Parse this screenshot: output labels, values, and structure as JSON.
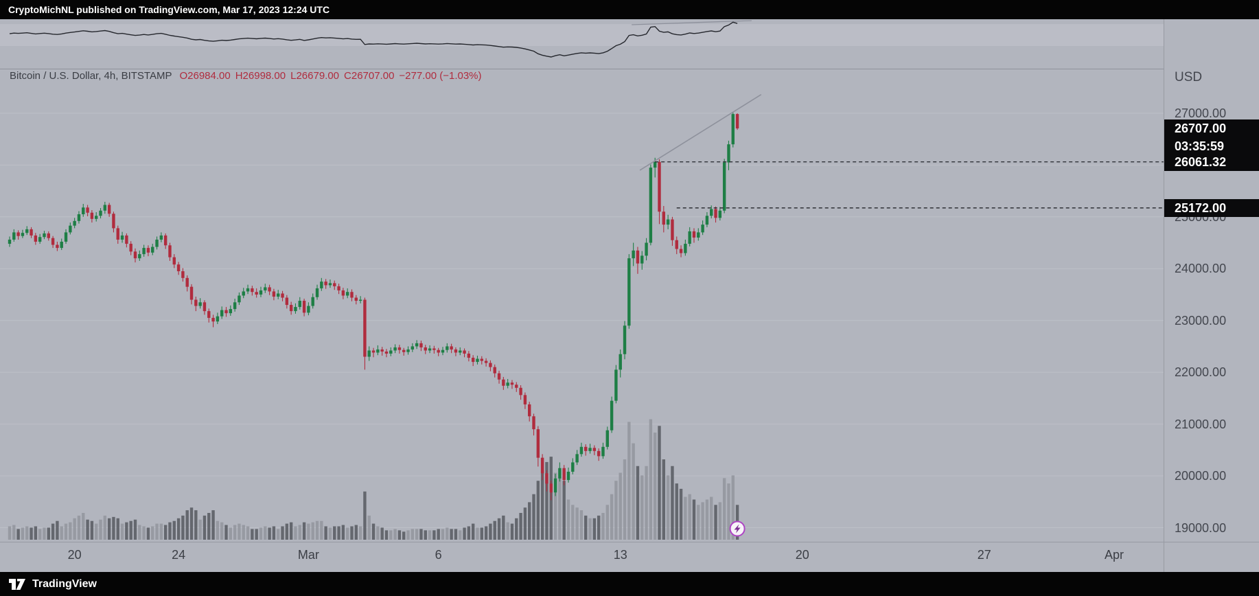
{
  "attribution": {
    "text": "CryptoMichNL published on TradingView.com, Mar 17, 2023 12:24 UTC"
  },
  "legend": {
    "series": "Bitcoin / U.S. Dollar, 4h, BITSTAMP",
    "open": "O26984.00",
    "high": "H26998.00",
    "low": "L26679.00",
    "close": "C26707.00",
    "change": "−277.00 (−1.03%)"
  },
  "price_axis": {
    "currency": "USD",
    "scale_levels": [
      27000,
      26000,
      25000,
      24000,
      23000,
      22000,
      21000,
      20000,
      19000
    ],
    "labels": [
      "27000.00",
      "26000.00",
      "25000.00",
      "24000.00",
      "23000.00",
      "22000.00",
      "21000.00",
      "20000.00",
      "19000.00"
    ],
    "current_price": "26707.00",
    "countdown": "03:35:59"
  },
  "time_axis": {
    "labels": [
      {
        "text": "20",
        "index": 15
      },
      {
        "text": "24",
        "index": 39
      },
      {
        "text": "Mar",
        "index": 69
      },
      {
        "text": "6",
        "index": 99
      },
      {
        "text": "13",
        "index": 141
      },
      {
        "text": "20",
        "index": 183
      },
      {
        "text": "27",
        "index": 225
      },
      {
        "text": "Apr",
        "index": 255
      }
    ]
  },
  "branding": {
    "name": "TradingView"
  },
  "colors": {
    "background": "#b2b5be",
    "up": "#1e7e45",
    "down": "#b02c3e",
    "volume_up": "#94979e",
    "volume_down": "#5b5e65",
    "label_box": "#0a0a0c",
    "legend_values": "#b02c3e"
  },
  "chart_data": {
    "type": "candlestick",
    "symbol": "Bitcoin / U.S. Dollar",
    "exchange": "BITSTAMP",
    "interval": "4h",
    "visible_price_range": [
      19000,
      27360
    ],
    "current": {
      "open": 26984.0,
      "high": 26998.0,
      "low": 26679.0,
      "close": 26707.0,
      "change": -277.0,
      "change_percent": -1.03
    },
    "levels": [
      {
        "price": 26061.32,
        "label": "26061.32",
        "start_index": 149
      },
      {
        "price": 25172.0,
        "label": "25172.00",
        "start_index": 154
      }
    ],
    "trendlines": [
      {
        "pane": "main",
        "i1": 145.5,
        "p1": 25900,
        "i2": 173.5,
        "p2": 27360
      },
      {
        "pane": "overview",
        "i1": 143.6,
        "p1": 26450,
        "i2": 171.3,
        "p2": 27320
      }
    ],
    "marker": {
      "type": "lightning-idea",
      "index": 168
    },
    "candle_format": [
      "open",
      "high",
      "low",
      "close",
      "volume_relative"
    ],
    "candles": [
      [
        24480,
        24620,
        24420,
        24560,
        10
      ],
      [
        24560,
        24760,
        24520,
        24700,
        11
      ],
      [
        24700,
        24740,
        24560,
        24630,
        8
      ],
      [
        24630,
        24750,
        24590,
        24690,
        9
      ],
      [
        24690,
        24820,
        24650,
        24760,
        10
      ],
      [
        24760,
        24800,
        24590,
        24640,
        9
      ],
      [
        24640,
        24690,
        24460,
        24520,
        10
      ],
      [
        24520,
        24670,
        24480,
        24610,
        8
      ],
      [
        24610,
        24730,
        24570,
        24680,
        9
      ],
      [
        24680,
        24720,
        24540,
        24590,
        9
      ],
      [
        24590,
        24630,
        24400,
        24460,
        12
      ],
      [
        24460,
        24520,
        24340,
        24400,
        14
      ],
      [
        24400,
        24580,
        24360,
        24520,
        10
      ],
      [
        24520,
        24760,
        24480,
        24700,
        12
      ],
      [
        24700,
        24890,
        24660,
        24830,
        13
      ],
      [
        24830,
        24980,
        24780,
        24920,
        16
      ],
      [
        24920,
        25110,
        24870,
        25050,
        18
      ],
      [
        25050,
        25250,
        25000,
        25180,
        20
      ],
      [
        25180,
        25230,
        25010,
        25080,
        15
      ],
      [
        25080,
        25130,
        24890,
        24960,
        14
      ],
      [
        24960,
        25090,
        24910,
        25020,
        12
      ],
      [
        25020,
        25170,
        24970,
        25120,
        15
      ],
      [
        25120,
        25290,
        25060,
        25230,
        18
      ],
      [
        25230,
        25270,
        25000,
        25060,
        16
      ],
      [
        25060,
        25100,
        24700,
        24780,
        17
      ],
      [
        24780,
        24830,
        24480,
        24560,
        16
      ],
      [
        24560,
        24710,
        24500,
        24640,
        12
      ],
      [
        24640,
        24680,
        24410,
        24480,
        13
      ],
      [
        24480,
        24530,
        24260,
        24330,
        14
      ],
      [
        24330,
        24390,
        24120,
        24200,
        15
      ],
      [
        24200,
        24350,
        24150,
        24280,
        11
      ],
      [
        24280,
        24460,
        24230,
        24400,
        10
      ],
      [
        24400,
        24450,
        24240,
        24310,
        9
      ],
      [
        24310,
        24480,
        24260,
        24420,
        10
      ],
      [
        24420,
        24620,
        24370,
        24560,
        12
      ],
      [
        24560,
        24700,
        24510,
        24640,
        12
      ],
      [
        24640,
        24680,
        24380,
        24450,
        11
      ],
      [
        24450,
        24500,
        24150,
        24220,
        13
      ],
      [
        24220,
        24280,
        24010,
        24080,
        14
      ],
      [
        24080,
        24130,
        23880,
        23950,
        16
      ],
      [
        23950,
        24010,
        23750,
        23820,
        18
      ],
      [
        23820,
        23870,
        23560,
        23650,
        22
      ],
      [
        23650,
        23700,
        23310,
        23400,
        24
      ],
      [
        23400,
        23460,
        23180,
        23280,
        22
      ],
      [
        23280,
        23430,
        23230,
        23350,
        15
      ],
      [
        23350,
        23390,
        23110,
        23180,
        18
      ],
      [
        23180,
        23230,
        22960,
        23050,
        20
      ],
      [
        23050,
        23110,
        22870,
        22980,
        22
      ],
      [
        22980,
        23150,
        22930,
        23080,
        14
      ],
      [
        23080,
        23270,
        23030,
        23200,
        13
      ],
      [
        23200,
        23260,
        23070,
        23140,
        11
      ],
      [
        23140,
        23290,
        23090,
        23220,
        9
      ],
      [
        23220,
        23420,
        23170,
        23350,
        11
      ],
      [
        23350,
        23540,
        23300,
        23480,
        12
      ],
      [
        23480,
        23630,
        23430,
        23560,
        11
      ],
      [
        23560,
        23690,
        23510,
        23620,
        10
      ],
      [
        23620,
        23670,
        23480,
        23550,
        8
      ],
      [
        23550,
        23620,
        23440,
        23500,
        8
      ],
      [
        23500,
        23650,
        23450,
        23580,
        9
      ],
      [
        23580,
        23710,
        23530,
        23640,
        10
      ],
      [
        23640,
        23690,
        23490,
        23560,
        9
      ],
      [
        23560,
        23610,
        23390,
        23460,
        10
      ],
      [
        23460,
        23590,
        23410,
        23520,
        8
      ],
      [
        23520,
        23570,
        23370,
        23440,
        10
      ],
      [
        23440,
        23490,
        23230,
        23300,
        12
      ],
      [
        23300,
        23360,
        23110,
        23180,
        13
      ],
      [
        23180,
        23330,
        23130,
        23260,
        10
      ],
      [
        23260,
        23450,
        23210,
        23380,
        11
      ],
      [
        23380,
        23420,
        23080,
        23150,
        13
      ],
      [
        23150,
        23350,
        23100,
        23280,
        12
      ],
      [
        23280,
        23520,
        23230,
        23450,
        13
      ],
      [
        23450,
        23690,
        23400,
        23620,
        14
      ],
      [
        23620,
        23820,
        23570,
        23750,
        14
      ],
      [
        23750,
        23800,
        23610,
        23680,
        10
      ],
      [
        23680,
        23790,
        23630,
        23720,
        9
      ],
      [
        23720,
        23770,
        23590,
        23660,
        10
      ],
      [
        23660,
        23710,
        23510,
        23580,
        10
      ],
      [
        23580,
        23630,
        23410,
        23480,
        11
      ],
      [
        23480,
        23620,
        23430,
        23550,
        9
      ],
      [
        23550,
        23600,
        23370,
        23440,
        10
      ],
      [
        23440,
        23490,
        23310,
        23380,
        11
      ],
      [
        23380,
        23470,
        23330,
        23400,
        10
      ],
      [
        23400,
        23440,
        22050,
        22300,
        36
      ],
      [
        22300,
        22500,
        22220,
        22420,
        18
      ],
      [
        22420,
        22470,
        22290,
        22380,
        12
      ],
      [
        22380,
        22520,
        22330,
        22440,
        10
      ],
      [
        22440,
        22490,
        22320,
        22400,
        9
      ],
      [
        22400,
        22450,
        22290,
        22360,
        7
      ],
      [
        22360,
        22480,
        22310,
        22420,
        7
      ],
      [
        22420,
        22540,
        22370,
        22480,
        8
      ],
      [
        22480,
        22530,
        22360,
        22430,
        7
      ],
      [
        22430,
        22470,
        22320,
        22390,
        6
      ],
      [
        22390,
        22500,
        22340,
        22440,
        7
      ],
      [
        22440,
        22560,
        22390,
        22500,
        8
      ],
      [
        22500,
        22620,
        22450,
        22560,
        8
      ],
      [
        22560,
        22610,
        22410,
        22480,
        8
      ],
      [
        22480,
        22530,
        22350,
        22420,
        7
      ],
      [
        22420,
        22520,
        22370,
        22460,
        7
      ],
      [
        22460,
        22510,
        22360,
        22430,
        7
      ],
      [
        22430,
        22470,
        22310,
        22380,
        8
      ],
      [
        22380,
        22490,
        22330,
        22430,
        8
      ],
      [
        22430,
        22560,
        22380,
        22500,
        9
      ],
      [
        22500,
        22550,
        22370,
        22440,
        8
      ],
      [
        22440,
        22480,
        22310,
        22380,
        8
      ],
      [
        22380,
        22480,
        22330,
        22420,
        7
      ],
      [
        22420,
        22460,
        22290,
        22360,
        9
      ],
      [
        22360,
        22410,
        22210,
        22280,
        10
      ],
      [
        22280,
        22330,
        22120,
        22200,
        12
      ],
      [
        22200,
        22320,
        22150,
        22260,
        9
      ],
      [
        22260,
        22310,
        22150,
        22220,
        9
      ],
      [
        22220,
        22270,
        22110,
        22180,
        10
      ],
      [
        22180,
        22230,
        22020,
        22100,
        12
      ],
      [
        22100,
        22150,
        21900,
        21980,
        14
      ],
      [
        21980,
        22030,
        21780,
        21860,
        16
      ],
      [
        21860,
        21910,
        21660,
        21740,
        18
      ],
      [
        21740,
        21870,
        21690,
        21800,
        13
      ],
      [
        21800,
        21850,
        21680,
        21760,
        12
      ],
      [
        21760,
        21810,
        21620,
        21700,
        16
      ],
      [
        21700,
        21750,
        21470,
        21560,
        20
      ],
      [
        21560,
        21610,
        21290,
        21380,
        24
      ],
      [
        21380,
        21430,
        21050,
        21150,
        28
      ],
      [
        21150,
        21200,
        20780,
        20900,
        34
      ],
      [
        20900,
        20960,
        20180,
        20350,
        44
      ],
      [
        20350,
        20420,
        19920,
        20050,
        52
      ],
      [
        20050,
        20110,
        19700,
        19850,
        58
      ],
      [
        19850,
        19910,
        19530,
        19680,
        62
      ],
      [
        19680,
        20040,
        19610,
        19950,
        50
      ],
      [
        19950,
        20260,
        19890,
        20150,
        46
      ],
      [
        20150,
        20210,
        19820,
        19920,
        44
      ],
      [
        19920,
        20160,
        19870,
        20080,
        30
      ],
      [
        20080,
        20340,
        20030,
        20260,
        26
      ],
      [
        20260,
        20500,
        20210,
        20420,
        24
      ],
      [
        20420,
        20640,
        20370,
        20560,
        22
      ],
      [
        20560,
        20610,
        20390,
        20480,
        18
      ],
      [
        20480,
        20620,
        20430,
        20540,
        16
      ],
      [
        20540,
        20590,
        20400,
        20480,
        16
      ],
      [
        20480,
        20530,
        20290,
        20380,
        18
      ],
      [
        20380,
        20640,
        20330,
        20560,
        20
      ],
      [
        20560,
        20950,
        20510,
        20880,
        26
      ],
      [
        20880,
        21530,
        20830,
        21450,
        34
      ],
      [
        21450,
        22140,
        21400,
        22050,
        44
      ],
      [
        22050,
        22440,
        21900,
        22350,
        50
      ],
      [
        22350,
        22990,
        22250,
        22900,
        60
      ],
      [
        22900,
        24280,
        22840,
        24200,
        88
      ],
      [
        24200,
        24500,
        24050,
        24350,
        72
      ],
      [
        24350,
        24420,
        23900,
        24100,
        55
      ],
      [
        24100,
        24340,
        23980,
        24250,
        48
      ],
      [
        24250,
        24590,
        24160,
        24500,
        55
      ],
      [
        24500,
        26010,
        24450,
        25950,
        90
      ],
      [
        25950,
        26140,
        25760,
        26060,
        80
      ],
      [
        26060,
        26110,
        24860,
        25100,
        85
      ],
      [
        25100,
        25210,
        24700,
        24850,
        60
      ],
      [
        24850,
        25040,
        24760,
        24950,
        48
      ],
      [
        24950,
        25000,
        24440,
        24550,
        55
      ],
      [
        24550,
        24620,
        24280,
        24380,
        42
      ],
      [
        24380,
        24450,
        24220,
        24300,
        38
      ],
      [
        24300,
        24560,
        24250,
        24480,
        32
      ],
      [
        24480,
        24800,
        24430,
        24720,
        34
      ],
      [
        24720,
        24780,
        24500,
        24600,
        30
      ],
      [
        24600,
        24780,
        24540,
        24700,
        26
      ],
      [
        24700,
        24930,
        24650,
        24850,
        28
      ],
      [
        24850,
        25090,
        24800,
        25020,
        30
      ],
      [
        25020,
        25220,
        24970,
        25150,
        32
      ],
      [
        25150,
        25200,
        24890,
        24980,
        26
      ],
      [
        24980,
        25190,
        24930,
        25120,
        28
      ],
      [
        25120,
        26120,
        25070,
        26050,
        46
      ],
      [
        26050,
        26470,
        25900,
        26400,
        42
      ],
      [
        26400,
        27030,
        26340,
        26984,
        48
      ],
      [
        26984,
        26998,
        26679,
        26707,
        26
      ]
    ]
  }
}
